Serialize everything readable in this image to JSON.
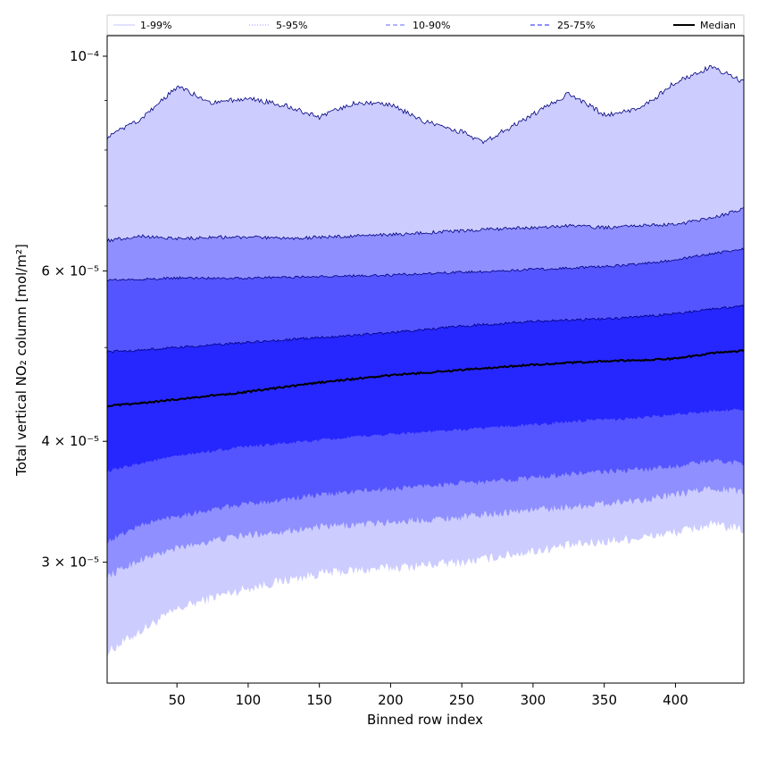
{
  "chart_data": {
    "type": "area",
    "xlabel": "Binned row index",
    "ylabel": "Total vertical NO₂ column [mol/m²]",
    "yscale": "log",
    "xlim": [
      1,
      448
    ],
    "ylim": [
      2.25e-05,
      0.000105
    ],
    "x_ticks": [
      50,
      100,
      150,
      200,
      250,
      300,
      350,
      400
    ],
    "y_ticks": [
      {
        "value": 0.0001,
        "label": "10⁻⁴"
      },
      {
        "value": 6e-05,
        "label": "6 × 10⁻⁵"
      },
      {
        "value": 4e-05,
        "label": "4 × 10⁻⁵"
      },
      {
        "value": 3e-05,
        "label": "3 × 10⁻⁵"
      }
    ],
    "y_minor_ticks": [
      5e-05,
      7e-05,
      8e-05,
      9e-05
    ],
    "legend": [
      {
        "label": "1-99%",
        "color": "#d0d0ff",
        "style": "solid"
      },
      {
        "label": "5-95%",
        "color": "#a7a7ff",
        "style": "dotted"
      },
      {
        "label": "10-90%",
        "color": "#8484ff",
        "style": "dashed"
      },
      {
        "label": "25-75%",
        "color": "#4a4aff",
        "style": "dashed"
      },
      {
        "label": "Median",
        "color": "#000000",
        "style": "solid"
      }
    ],
    "legend_placement": "top",
    "x": [
      1,
      25,
      50,
      75,
      100,
      125,
      150,
      175,
      200,
      225,
      250,
      265,
      275,
      300,
      325,
      350,
      375,
      400,
      425,
      448
    ],
    "series": [
      {
        "name": "p1",
        "values": [
          2.42e-05,
          2.55e-05,
          2.68e-05,
          2.76e-05,
          2.82e-05,
          2.87e-05,
          2.92e-05,
          2.94e-05,
          2.96e-05,
          2.98e-05,
          3e-05,
          3.02e-05,
          3.04e-05,
          3.08e-05,
          3.12e-05,
          3.15e-05,
          3.18e-05,
          3.22e-05,
          3.28e-05,
          3.24e-05
        ]
      },
      {
        "name": "p5",
        "values": [
          2.9e-05,
          3.02e-05,
          3.1e-05,
          3.16e-05,
          3.2e-05,
          3.23e-05,
          3.26e-05,
          3.28e-05,
          3.3e-05,
          3.32e-05,
          3.34e-05,
          3.36e-05,
          3.37e-05,
          3.4e-05,
          3.42e-05,
          3.45e-05,
          3.48e-05,
          3.52e-05,
          3.58e-05,
          3.55e-05
        ]
      },
      {
        "name": "p10",
        "values": [
          3.15e-05,
          3.28e-05,
          3.35e-05,
          3.4e-05,
          3.45e-05,
          3.48e-05,
          3.52e-05,
          3.55e-05,
          3.57e-05,
          3.6e-05,
          3.62e-05,
          3.63e-05,
          3.64e-05,
          3.67e-05,
          3.7e-05,
          3.72e-05,
          3.74e-05,
          3.77e-05,
          3.82e-05,
          3.8e-05
        ]
      },
      {
        "name": "p25",
        "values": [
          3.72e-05,
          3.8e-05,
          3.86e-05,
          3.91e-05,
          3.95e-05,
          3.98e-05,
          4.01e-05,
          4.04e-05,
          4.07e-05,
          4.09e-05,
          4.11e-05,
          4.13e-05,
          4.14e-05,
          4.16e-05,
          4.19e-05,
          4.21e-05,
          4.23e-05,
          4.26e-05,
          4.3e-05,
          4.32e-05
        ]
      },
      {
        "name": "Median",
        "values": [
          4.35e-05,
          4.38e-05,
          4.42e-05,
          4.46e-05,
          4.5e-05,
          4.55e-05,
          4.6e-05,
          4.64e-05,
          4.68e-05,
          4.71e-05,
          4.74e-05,
          4.76e-05,
          4.77e-05,
          4.8e-05,
          4.82e-05,
          4.84e-05,
          4.85e-05,
          4.87e-05,
          4.93e-05,
          4.96e-05
        ]
      },
      {
        "name": "p75",
        "values": [
          4.95e-05,
          4.97e-05,
          5e-05,
          5.03e-05,
          5.06e-05,
          5.09e-05,
          5.12e-05,
          5.15e-05,
          5.18e-05,
          5.22e-05,
          5.26e-05,
          5.28e-05,
          5.29e-05,
          5.32e-05,
          5.34e-05,
          5.35e-05,
          5.38e-05,
          5.42e-05,
          5.48e-05,
          5.52e-05
        ]
      },
      {
        "name": "p90",
        "values": [
          5.87e-05,
          5.88e-05,
          5.9e-05,
          5.9e-05,
          5.9e-05,
          5.91e-05,
          5.92e-05,
          5.93e-05,
          5.94e-05,
          5.96e-05,
          5.98e-05,
          5.99e-05,
          6e-05,
          6.02e-05,
          6.04e-05,
          6.06e-05,
          6.1e-05,
          6.16e-05,
          6.25e-05,
          6.32e-05
        ]
      },
      {
        "name": "p95",
        "values": [
          6.45e-05,
          6.52e-05,
          6.48e-05,
          6.5e-05,
          6.5e-05,
          6.48e-05,
          6.5e-05,
          6.52e-05,
          6.54e-05,
          6.57e-05,
          6.6e-05,
          6.62e-05,
          6.63e-05,
          6.65e-05,
          6.68e-05,
          6.65e-05,
          6.68e-05,
          6.7e-05,
          6.8e-05,
          6.95e-05
        ]
      },
      {
        "name": "p99",
        "values": [
          8.25e-05,
          8.6e-05,
          9.3e-05,
          8.95e-05,
          9.05e-05,
          8.9e-05,
          8.65e-05,
          8.95e-05,
          8.9e-05,
          8.55e-05,
          8.35e-05,
          8.15e-05,
          8.3e-05,
          8.7e-05,
          9.15e-05,
          8.7e-05,
          8.8e-05,
          9.4e-05,
          9.75e-05,
          9.4e-05
        ]
      }
    ]
  }
}
